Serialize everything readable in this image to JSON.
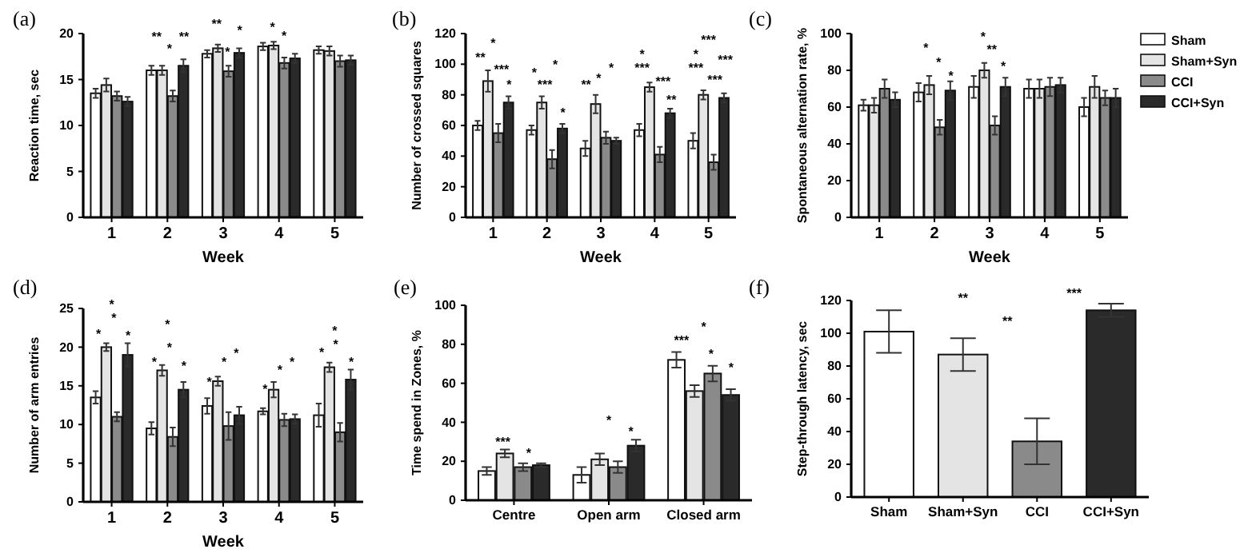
{
  "chart_data": [
    {
      "type": "bar",
      "title": "(a)",
      "xlabel": "Week",
      "ylabel": "Reaction time, sec",
      "categories": [
        "1",
        "2",
        "3",
        "4",
        "5"
      ],
      "ylim": [
        0,
        20
      ],
      "yticks": [
        0,
        5,
        10,
        15,
        20
      ],
      "series": [
        {
          "color": "#ffffff",
          "values": [
            13.5,
            16.0,
            17.8,
            18.6,
            18.2
          ],
          "errors": [
            0.5,
            0.5,
            0.4,
            0.4,
            0.4
          ]
        },
        {
          "color": "#e4e4e4",
          "values": [
            14.4,
            16.0,
            18.4,
            18.7,
            18.1
          ],
          "errors": [
            0.7,
            0.5,
            0.4,
            0.4,
            0.5
          ]
        },
        {
          "color": "#8a8a8a",
          "values": [
            13.2,
            13.2,
            15.9,
            16.8,
            17.0
          ],
          "errors": [
            0.5,
            0.6,
            0.6,
            0.6,
            0.6
          ]
        },
        {
          "color": "#2a2a2a",
          "values": [
            12.6,
            16.5,
            17.9,
            17.3,
            17.1
          ],
          "errors": [
            0.5,
            0.7,
            0.5,
            0.5,
            0.5
          ]
        }
      ],
      "annotations": [
        "**",
        "*",
        "**",
        "**",
        "*",
        "*",
        "*",
        "*"
      ]
    },
    {
      "type": "bar",
      "title": "(b)",
      "xlabel": "Week",
      "ylabel": "Number of crossed squares",
      "categories": [
        "1",
        "2",
        "3",
        "4",
        "5"
      ],
      "ylim": [
        0,
        120
      ],
      "yticks": [
        0,
        20,
        40,
        60,
        80,
        100,
        120
      ],
      "series": [
        {
          "color": "#ffffff",
          "values": [
            60,
            57,
            45,
            57,
            50
          ],
          "errors": [
            3,
            3,
            5,
            4,
            5
          ]
        },
        {
          "color": "#e4e4e4",
          "values": [
            89,
            75,
            74,
            85,
            80
          ],
          "errors": [
            7,
            4,
            6,
            3,
            3
          ]
        },
        {
          "color": "#8a8a8a",
          "values": [
            55,
            38,
            52,
            41,
            36
          ],
          "errors": [
            6,
            6,
            4,
            5,
            5
          ]
        },
        {
          "color": "#2a2a2a",
          "values": [
            75,
            58,
            50,
            68,
            78
          ],
          "errors": [
            4,
            3,
            2,
            3,
            3
          ]
        }
      ],
      "annotations": [
        "*",
        "**",
        "***",
        "*",
        "*",
        "***",
        "*",
        "*",
        "**",
        "*",
        "*",
        "*",
        "***",
        "***",
        "**",
        "***",
        "*",
        "***",
        "***",
        "***"
      ]
    },
    {
      "type": "bar",
      "title": "(c)",
      "xlabel": "Week",
      "ylabel": "Spontaneous alternation rate, %",
      "categories": [
        "1",
        "2",
        "3",
        "4",
        "5"
      ],
      "ylim": [
        0,
        100
      ],
      "yticks": [
        0,
        20,
        40,
        60,
        80,
        100
      ],
      "legend": "right",
      "series": [
        {
          "name": "Sham",
          "color": "#ffffff",
          "values": [
            61,
            68,
            71,
            70,
            60
          ],
          "errors": [
            3,
            5,
            6,
            5,
            5
          ]
        },
        {
          "name": "Sham+Syn",
          "color": "#e4e4e4",
          "values": [
            61,
            72,
            80,
            70,
            71
          ],
          "errors": [
            4,
            5,
            4,
            5,
            6
          ]
        },
        {
          "name": "CCI",
          "color": "#8a8a8a",
          "values": [
            70,
            49,
            50,
            71,
            65
          ],
          "errors": [
            5,
            4,
            5,
            5,
            4
          ]
        },
        {
          "name": "CCI+Syn",
          "color": "#2a2a2a",
          "values": [
            64,
            69,
            71,
            72,
            65
          ],
          "errors": [
            4,
            5,
            5,
            4,
            5
          ]
        }
      ],
      "annotations": [
        "*",
        "*",
        "*",
        "*",
        "**",
        "*"
      ]
    },
    {
      "type": "bar",
      "title": "(d)",
      "xlabel": "Week",
      "ylabel": "Number of arm entries",
      "categories": [
        "1",
        "2",
        "3",
        "4",
        "5"
      ],
      "ylim": [
        0,
        25
      ],
      "yticks": [
        0,
        5,
        10,
        15,
        20,
        25
      ],
      "series": [
        {
          "color": "#ffffff",
          "values": [
            13.5,
            9.5,
            12.4,
            11.7,
            11.2
          ],
          "errors": [
            0.8,
            0.8,
            1.0,
            0.4,
            1.5
          ]
        },
        {
          "color": "#e4e4e4",
          "values": [
            20.0,
            17.0,
            15.6,
            14.5,
            17.4
          ],
          "errors": [
            0.5,
            0.7,
            0.6,
            1.0,
            0.6
          ]
        },
        {
          "color": "#8a8a8a",
          "values": [
            11.0,
            8.4,
            9.8,
            10.6,
            9.0
          ],
          "errors": [
            0.6,
            1.2,
            1.8,
            0.8,
            1.2
          ]
        },
        {
          "color": "#2a2a2a",
          "values": [
            19.0,
            14.5,
            11.2,
            10.7,
            15.8
          ],
          "errors": [
            1.5,
            1.0,
            1.1,
            0.6,
            1.3
          ]
        }
      ],
      "annotations": [
        "*",
        "*",
        "*",
        "*",
        "*",
        "*",
        "*",
        "*",
        "*",
        "*",
        "*",
        "*",
        "*",
        "*",
        "*",
        "*",
        "*",
        "*"
      ]
    },
    {
      "type": "bar",
      "title": "(e)",
      "ylabel": "Time spend in Zones, %",
      "categories": [
        "Centre",
        "Open arm",
        "Closed arm"
      ],
      "ylim": [
        0,
        100
      ],
      "yticks": [
        0,
        20,
        40,
        60,
        80,
        100
      ],
      "series": [
        {
          "color": "#ffffff",
          "values": [
            15,
            13,
            72
          ],
          "errors": [
            2,
            4,
            4
          ]
        },
        {
          "color": "#e4e4e4",
          "values": [
            24,
            21,
            56
          ],
          "errors": [
            2,
            3,
            3
          ]
        },
        {
          "color": "#8a8a8a",
          "values": [
            17,
            17,
            65
          ],
          "errors": [
            2,
            3,
            4
          ]
        },
        {
          "color": "#2a2a2a",
          "values": [
            18,
            28,
            54
          ],
          "errors": [
            1,
            3,
            3
          ]
        }
      ],
      "annotations": [
        "***",
        "*",
        "*",
        "*",
        "***",
        "*",
        "*",
        "*"
      ]
    },
    {
      "type": "bar",
      "title": "(f)",
      "ylabel": "Step-through latency, sec",
      "categories": [
        "Sham",
        "Sham+Syn",
        "CCI",
        "CCI+Syn"
      ],
      "ylim": [
        0,
        120
      ],
      "yticks": [
        0,
        20,
        40,
        60,
        80,
        100,
        120
      ],
      "values": [
        101,
        87,
        34,
        114
      ],
      "errors": [
        13,
        10,
        14,
        4
      ],
      "colors": [
        "#ffffff",
        "#e4e4e4",
        "#8a8a8a",
        "#2a2a2a"
      ],
      "annotations": [
        "**",
        "**",
        "***"
      ]
    }
  ]
}
